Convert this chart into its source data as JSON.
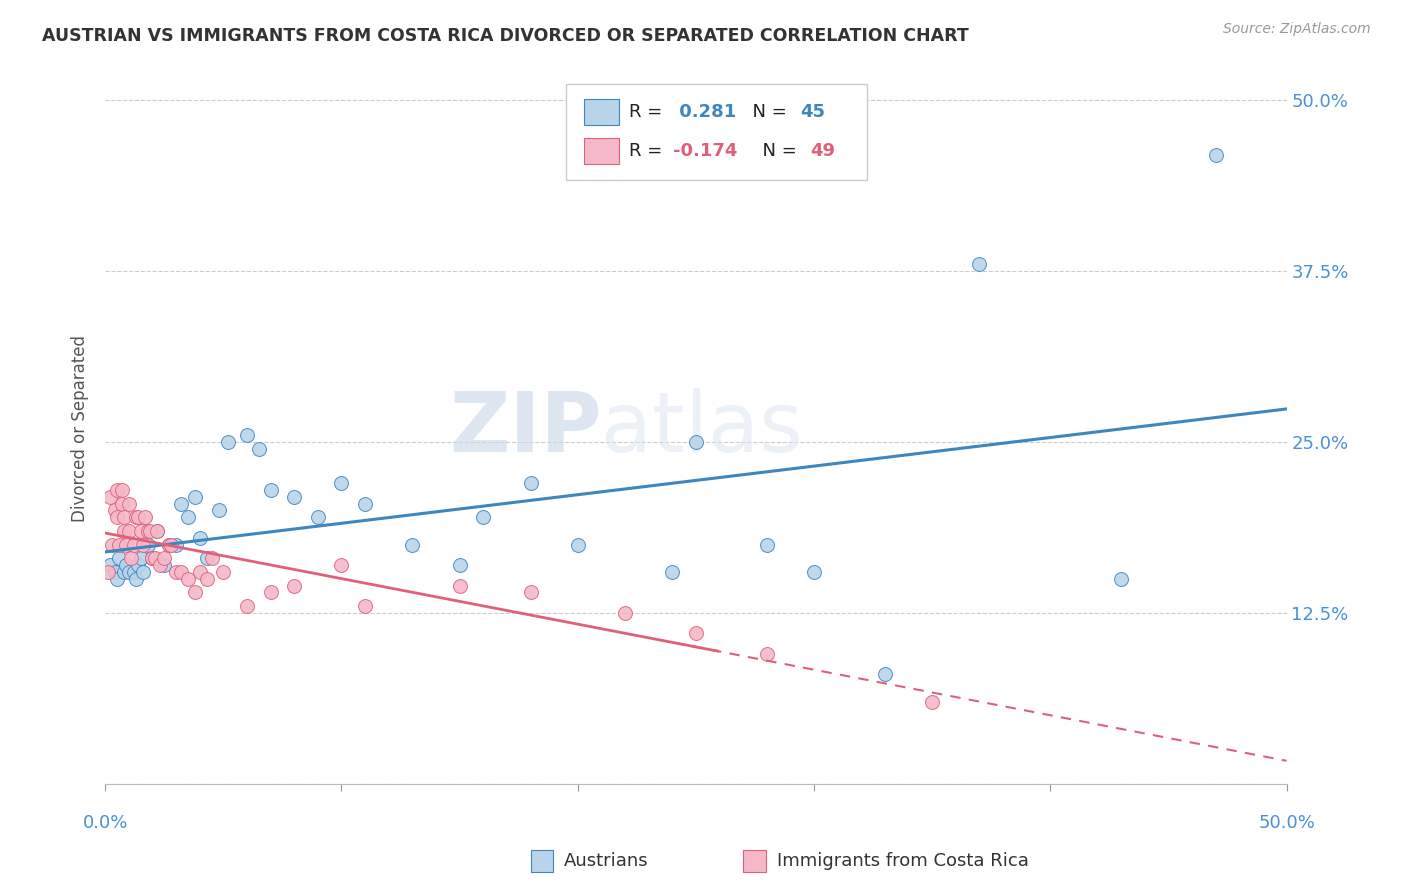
{
  "title": "AUSTRIAN VS IMMIGRANTS FROM COSTA RICA DIVORCED OR SEPARATED CORRELATION CHART",
  "source": "Source: ZipAtlas.com",
  "ylabel": "Divorced or Separated",
  "legend_austrians": "Austrians",
  "legend_immigrants": "Immigrants from Costa Rica",
  "r_austrians": 0.281,
  "n_austrians": 45,
  "r_immigrants": -0.174,
  "n_immigrants": 49,
  "austrians_color": "#b8d4ea",
  "austrians_line_color": "#3e86c0",
  "immigrants_color": "#f5b8c8",
  "immigrants_line_color": "#e0607a",
  "watermark_zip": "ZIP",
  "watermark_atlas": "atlas",
  "xlim": [
    0.0,
    0.5
  ],
  "ylim": [
    0.0,
    0.52
  ],
  "yticks": [
    0.0,
    0.125,
    0.25,
    0.375,
    0.5
  ],
  "ytick_labels": [
    "",
    "12.5%",
    "25.0%",
    "37.5%",
    "50.0%"
  ],
  "austrians_x": [
    0.002,
    0.004,
    0.005,
    0.006,
    0.008,
    0.009,
    0.01,
    0.012,
    0.013,
    0.014,
    0.015,
    0.016,
    0.018,
    0.02,
    0.022,
    0.025,
    0.027,
    0.03,
    0.032,
    0.035,
    0.038,
    0.04,
    0.043,
    0.048,
    0.052,
    0.06,
    0.065,
    0.07,
    0.08,
    0.09,
    0.1,
    0.11,
    0.13,
    0.15,
    0.16,
    0.18,
    0.2,
    0.24,
    0.25,
    0.28,
    0.3,
    0.33,
    0.37,
    0.43,
    0.47
  ],
  "austrians_y": [
    0.16,
    0.155,
    0.15,
    0.165,
    0.155,
    0.16,
    0.155,
    0.155,
    0.15,
    0.16,
    0.165,
    0.155,
    0.175,
    0.165,
    0.185,
    0.16,
    0.175,
    0.175,
    0.205,
    0.195,
    0.21,
    0.18,
    0.165,
    0.2,
    0.25,
    0.255,
    0.245,
    0.215,
    0.21,
    0.195,
    0.22,
    0.205,
    0.175,
    0.16,
    0.195,
    0.22,
    0.175,
    0.155,
    0.25,
    0.175,
    0.155,
    0.08,
    0.38,
    0.15,
    0.46
  ],
  "immigrants_x": [
    0.001,
    0.002,
    0.003,
    0.004,
    0.005,
    0.005,
    0.006,
    0.007,
    0.007,
    0.008,
    0.008,
    0.009,
    0.01,
    0.01,
    0.011,
    0.012,
    0.013,
    0.014,
    0.015,
    0.016,
    0.017,
    0.018,
    0.019,
    0.02,
    0.021,
    0.022,
    0.023,
    0.025,
    0.027,
    0.028,
    0.03,
    0.032,
    0.035,
    0.038,
    0.04,
    0.043,
    0.045,
    0.05,
    0.06,
    0.07,
    0.08,
    0.1,
    0.11,
    0.15,
    0.18,
    0.22,
    0.25,
    0.28,
    0.35
  ],
  "immigrants_y": [
    0.155,
    0.21,
    0.175,
    0.2,
    0.195,
    0.215,
    0.175,
    0.215,
    0.205,
    0.195,
    0.185,
    0.175,
    0.205,
    0.185,
    0.165,
    0.175,
    0.195,
    0.195,
    0.185,
    0.175,
    0.195,
    0.185,
    0.185,
    0.165,
    0.165,
    0.185,
    0.16,
    0.165,
    0.175,
    0.175,
    0.155,
    0.155,
    0.15,
    0.14,
    0.155,
    0.15,
    0.165,
    0.155,
    0.13,
    0.14,
    0.145,
    0.16,
    0.13,
    0.145,
    0.14,
    0.125,
    0.11,
    0.095,
    0.06
  ]
}
